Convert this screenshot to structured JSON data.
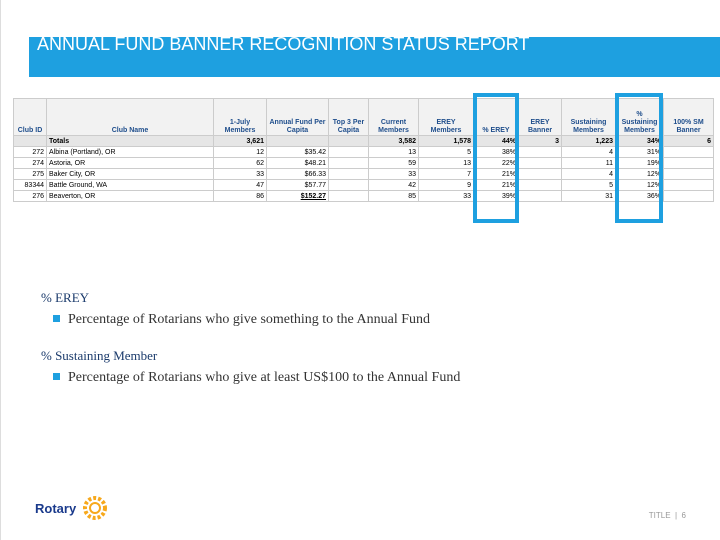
{
  "header": {
    "title": "ANNUAL FUND BANNER RECOGNITION STATUS REPORT"
  },
  "table": {
    "columns": [
      "Club ID",
      "Club Name",
      "1-July Members",
      "Annual Fund Per Capita",
      "Top 3 Per Capita",
      "Current Members",
      "EREY Members",
      "% EREY",
      "EREY Banner",
      "Sustaining Members",
      "% Sustaining Members",
      "100% SM Banner"
    ],
    "totals": [
      null,
      "Totals",
      "3,621",
      null,
      null,
      "3,582",
      "1,578",
      "44%",
      "3",
      "1,223",
      "34%",
      "6"
    ],
    "rows": [
      [
        "272",
        "Albina (Portland), OR",
        "12",
        "$35.42",
        null,
        "13",
        "5",
        "38%",
        null,
        "4",
        "31%",
        null
      ],
      [
        "274",
        "Astoria, OR",
        "62",
        "$48.21",
        null,
        "59",
        "13",
        "22%",
        null,
        "11",
        "19%",
        null
      ],
      [
        "275",
        "Baker City, OR",
        "33",
        "$66.33",
        null,
        "33",
        "7",
        "21%",
        null,
        "4",
        "12%",
        null
      ],
      [
        "83344",
        "Battle Ground, WA",
        "47",
        "$57.77",
        null,
        "42",
        "9",
        "21%",
        null,
        "5",
        "12%",
        null
      ],
      [
        "276",
        "Beaverton, OR",
        "86",
        "$152.27",
        null,
        "85",
        "33",
        "39%",
        null,
        "31",
        "36%",
        null
      ]
    ]
  },
  "notes": [
    {
      "term": "% EREY",
      "definition": "Percentage of Rotarians who give something to the Annual Fund"
    },
    {
      "term": "% Sustaining Member",
      "definition": "Percentage of Rotarians who give at least US$100 to the Annual Fund"
    }
  ],
  "footer": {
    "logo": "Rotary",
    "label": "TITLE",
    "page": "6"
  }
}
